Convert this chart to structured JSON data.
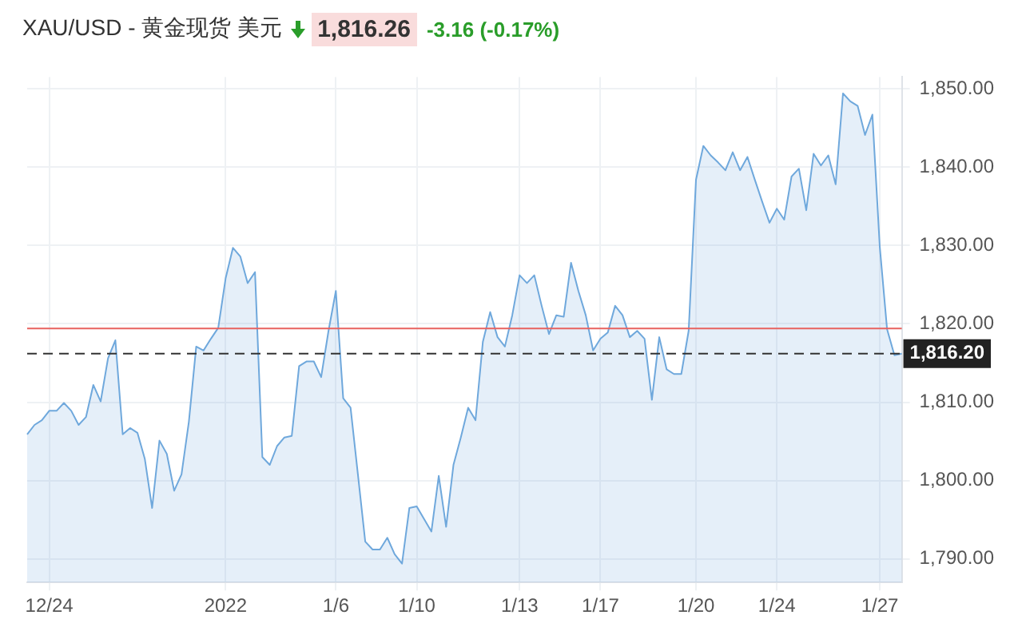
{
  "chart_data": {
    "type": "area",
    "title": "XAU/USD - 黄金现货 美元",
    "annotations": [
      "1,816.26",
      "-3.16 (-0.17%)"
    ],
    "categories": [
      null,
      null,
      null,
      "12/24",
      null,
      null,
      null,
      null,
      null,
      null,
      null,
      null,
      null,
      null,
      null,
      null,
      null,
      null,
      null,
      null,
      null,
      null,
      null,
      null,
      null,
      null,
      null,
      "2022",
      null,
      null,
      null,
      null,
      null,
      null,
      null,
      null,
      null,
      null,
      null,
      null,
      null,
      null,
      "1/6",
      null,
      null,
      null,
      null,
      null,
      null,
      null,
      null,
      null,
      null,
      "1/10",
      null,
      null,
      null,
      null,
      null,
      null,
      null,
      null,
      null,
      null,
      null,
      null,
      null,
      "1/13",
      null,
      null,
      null,
      null,
      null,
      null,
      null,
      null,
      null,
      null,
      "1/17",
      null,
      null,
      null,
      null,
      null,
      null,
      null,
      null,
      null,
      null,
      null,
      null,
      "1/20",
      null,
      null,
      null,
      null,
      null,
      null,
      null,
      null,
      null,
      null,
      "1/24",
      null,
      null,
      null,
      null,
      null,
      null,
      null,
      null,
      null,
      null,
      null,
      null,
      null,
      "1/27",
      null,
      null,
      null
    ],
    "series": [
      {
        "color": "#6fa8dc",
        "values": [
          1805.9,
          1807.1,
          1807.7,
          1808.9,
          1808.9,
          1809.9,
          1808.9,
          1807.1,
          1808.1,
          1812.2,
          1810.1,
          1815.6,
          1817.9,
          1805.9,
          1806.7,
          1806.1,
          1802.8,
          1796.5,
          1805.1,
          1803.4,
          1798.7,
          1800.8,
          1807.5,
          1817.1,
          1816.6,
          1818.1,
          1819.5,
          1825.8,
          1829.7,
          1828.6,
          1825.2,
          1826.6,
          1803.0,
          1802.0,
          1804.4,
          1805.5,
          1805.7,
          1814.6,
          1815.2,
          1815.2,
          1813.2,
          1819.1,
          1824.2,
          1810.5,
          1809.3,
          1800.8,
          1792.2,
          1791.2,
          1791.2,
          1792.7,
          1790.6,
          1789.4,
          1796.5,
          1796.7,
          1795.1,
          1793.5,
          1800.6,
          1794.1,
          1802.0,
          1805.5,
          1809.3,
          1807.7,
          1817.7,
          1821.5,
          1818.3,
          1817.1,
          1821.1,
          1826.2,
          1825.2,
          1826.2,
          1822.3,
          1818.7,
          1821.1,
          1820.9,
          1827.8,
          1824.2,
          1821.1,
          1816.6,
          1818.1,
          1818.9,
          1822.3,
          1821.1,
          1818.3,
          1819.1,
          1818.1,
          1810.3,
          1818.3,
          1814.2,
          1813.6,
          1813.6,
          1819.1,
          1838.4,
          1842.7,
          1841.5,
          1840.6,
          1839.6,
          1841.9,
          1839.6,
          1841.3,
          1838.4,
          1835.6,
          1832.9,
          1834.7,
          1833.3,
          1838.8,
          1839.8,
          1834.5,
          1841.7,
          1840.2,
          1841.5,
          1837.8,
          1849.4,
          1848.4,
          1847.8,
          1844.1,
          1846.7,
          1829.9,
          1819.3,
          1816.0,
          1816.2
        ]
      }
    ],
    "ylim": [
      1787,
      1851.5
    ],
    "yticks": [
      {
        "value": 1790,
        "label": "1,790.00"
      },
      {
        "value": 1800,
        "label": "1,800.00"
      },
      {
        "value": 1810,
        "label": "1,810.00"
      },
      {
        "value": 1820,
        "label": "1,820.00"
      },
      {
        "value": 1830,
        "label": "1,830.00"
      },
      {
        "value": 1840,
        "label": "1,840.00"
      },
      {
        "value": 1850,
        "label": "1,850.00"
      }
    ],
    "ref_lines": [
      {
        "axis": "y",
        "value": 1819.4,
        "label": null,
        "color": "#e8625f",
        "line_style": "solid"
      },
      {
        "axis": "y",
        "value": 1816.2,
        "label": "1,816.20",
        "color": "#333333",
        "line_style": "dashed"
      }
    ],
    "grid": true,
    "legend": false,
    "marker": "none",
    "line_style": "solid"
  }
}
